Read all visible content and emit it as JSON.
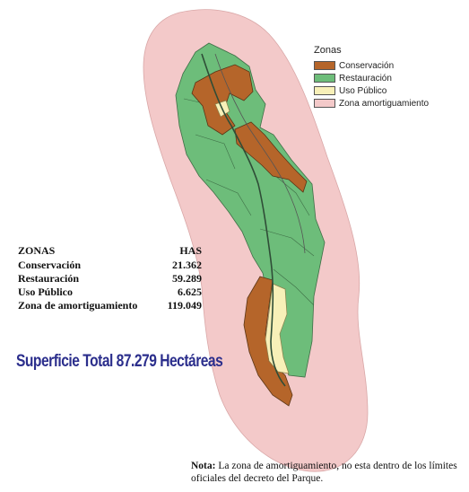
{
  "legend": {
    "title": "Zonas",
    "items": [
      {
        "label": "Conservación",
        "color": "#b5652a"
      },
      {
        "label": "Restauración",
        "color": "#6dbd7a"
      },
      {
        "label": "Uso Público",
        "color": "#f8f0b8"
      },
      {
        "label": "Zona amortiguamiento",
        "color": "#f3c9c9"
      }
    ]
  },
  "stats": {
    "header_zone": "ZONAS",
    "header_value": "HAS",
    "rows": [
      {
        "zone": "Conservación",
        "value": "21.362"
      },
      {
        "zone": "Restauración",
        "value": "59.289"
      },
      {
        "zone": "Uso Público",
        "value": "6.625"
      },
      {
        "zone": "Zona de amortiguamiento",
        "value": "119.049"
      }
    ]
  },
  "total": "Superficie Total 87.279 Hectáreas",
  "note": {
    "label": "Nota:",
    "text": " La zona de amortiguamiento, no esta dentro de los límites oficiales del decreto del Parque."
  }
}
